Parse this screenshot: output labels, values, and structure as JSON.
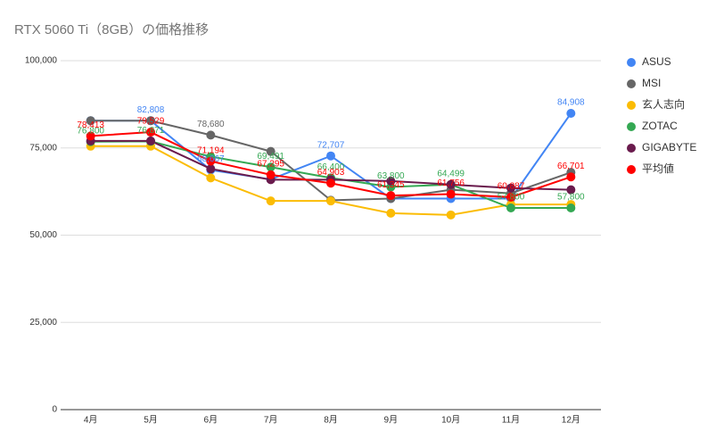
{
  "chart_data": {
    "type": "line",
    "title": "RTX 5060 Ti（8GB）の価格推移",
    "categories": [
      "4月",
      "5月",
      "6月",
      "7月",
      "8月",
      "9月",
      "10月",
      "11月",
      "12月"
    ],
    "series": [
      {
        "name": "ASUS",
        "color": "#4285f4",
        "values": [
          82808,
          82808,
          68667,
          66000,
          72707,
          60500,
          60500,
          60500,
          84908
        ],
        "value_labels": [
          null,
          "82,808",
          "68,667",
          null,
          "72,707",
          null,
          null,
          null,
          "84,908"
        ]
      },
      {
        "name": "MSI",
        "color": "#666666",
        "values": [
          82800,
          82800,
          78680,
          74000,
          60000,
          60500,
          63000,
          62000,
          68000
        ],
        "value_labels": [
          null,
          null,
          "78,680",
          null,
          null,
          null,
          null,
          null,
          null
        ]
      },
      {
        "name": "玄人志向",
        "color": "#fbbc04",
        "values": [
          75500,
          75500,
          66400,
          59800,
          59800,
          56300,
          55800,
          58800,
          58800
        ],
        "value_labels": [
          null,
          null,
          null,
          null,
          null,
          null,
          null,
          null,
          null
        ]
      },
      {
        "name": "ZOTAC",
        "color": "#34a853",
        "values": [
          76800,
          76871,
          72500,
          69491,
          66400,
          63800,
          64499,
          57800,
          57800
        ],
        "value_labels": [
          "76,800",
          "76,871",
          null,
          "69,491",
          "66,400",
          "63,800",
          "64,499",
          "57,800",
          "57,800"
        ]
      },
      {
        "name": "GIGABYTE",
        "color": "#6a1b4d",
        "values": [
          77000,
          77000,
          69000,
          65900,
          65900,
          65500,
          64500,
          63500,
          63000
        ],
        "value_labels": [
          null,
          null,
          null,
          null,
          null,
          null,
          null,
          null,
          null
        ]
      },
      {
        "name": "平均値",
        "color": "#ff0000",
        "values": [
          78413,
          79529,
          71194,
          67295,
          64903,
          61345,
          61756,
          60887,
          66701
        ],
        "value_labels": [
          "78,413",
          "79,529",
          "71,194",
          "67,295",
          "64,903",
          "61,345",
          "61,756",
          "60,887",
          "66,701"
        ]
      }
    ],
    "ylim": [
      0,
      100000
    ],
    "yticks": [
      0,
      {
        "value": 25000,
        "label": "25,000"
      },
      {
        "value": 50000,
        "label": "50,000"
      },
      {
        "value": 75000,
        "label": "75,000"
      },
      {
        "value": 100000,
        "label": "100,000"
      }
    ],
    "grid": true,
    "legend": "right"
  }
}
